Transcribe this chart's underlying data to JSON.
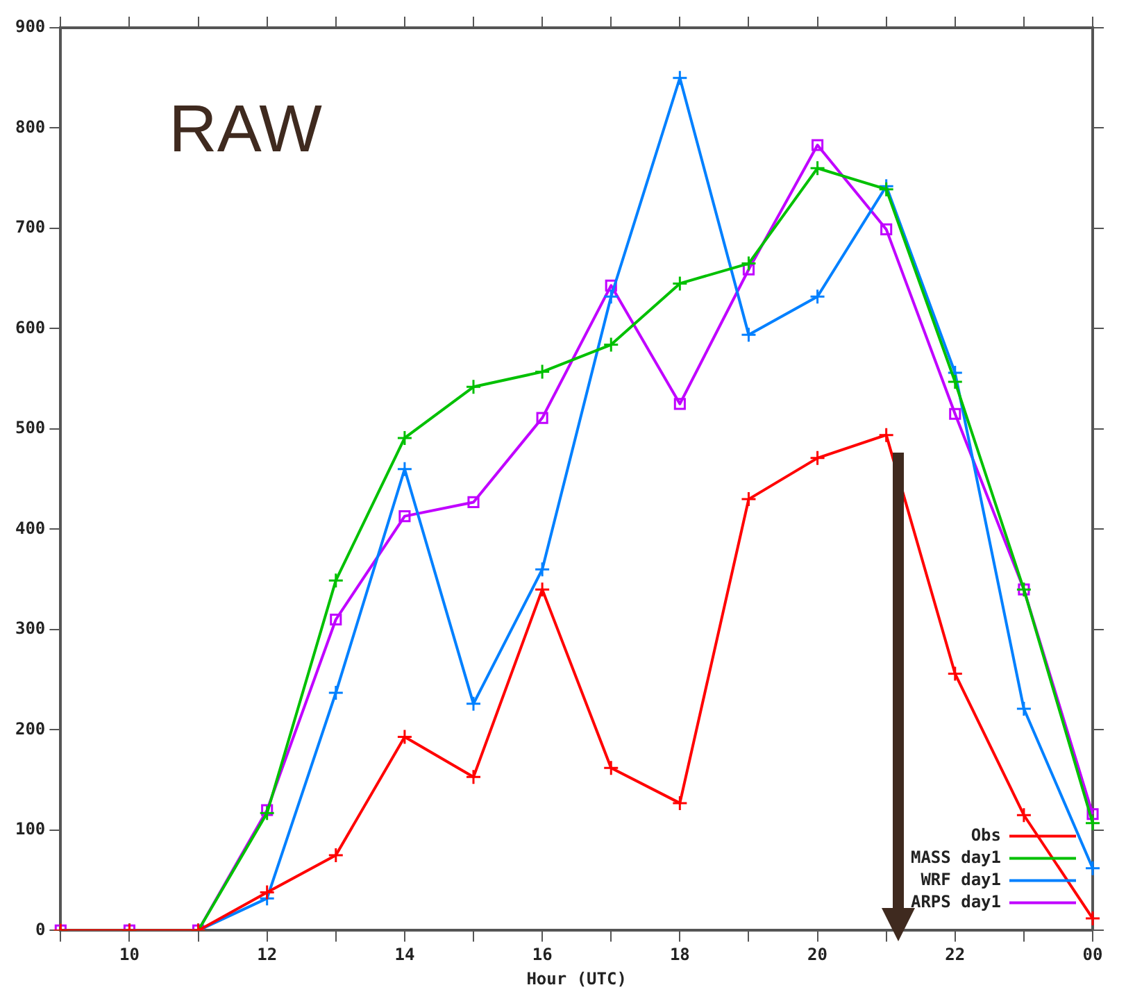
{
  "chart_data": {
    "type": "line",
    "xlabel": "Hour (UTC)",
    "annotations": [
      "RAW"
    ],
    "categories": [
      null,
      "10",
      null,
      "12",
      null,
      "14",
      null,
      "16",
      null,
      "18",
      null,
      "20",
      null,
      "22",
      null,
      "00"
    ],
    "ylim": [
      0,
      900
    ],
    "yticks": [
      0,
      100,
      200,
      300,
      400,
      500,
      600,
      700,
      800,
      900
    ],
    "grid": false,
    "legend": "bottom right",
    "series": [
      {
        "name": "Obs",
        "color": "#ff0000",
        "marker": "cross",
        "values": [
          0,
          0,
          0,
          38,
          75,
          193,
          153,
          340,
          162,
          127,
          430,
          471,
          494,
          256,
          115,
          12
        ]
      },
      {
        "name": "MASS day1",
        "color": "#00c000",
        "marker": "cross",
        "values": [
          0,
          0,
          0,
          117,
          349,
          491,
          542,
          557,
          584,
          645,
          665,
          760,
          739,
          547,
          340,
          107
        ]
      },
      {
        "name": "WRF day1",
        "color": "#0080ff",
        "marker": "cross",
        "values": [
          0,
          0,
          0,
          32,
          237,
          460,
          226,
          360,
          632,
          850,
          594,
          632,
          742,
          556,
          221,
          62
        ]
      },
      {
        "name": "ARPS day1",
        "color": "#c000ff",
        "marker": "square",
        "values": [
          0,
          0,
          0,
          120,
          310,
          413,
          427,
          511,
          643,
          525,
          659,
          783,
          699,
          515,
          340,
          116
        ]
      }
    ]
  }
}
